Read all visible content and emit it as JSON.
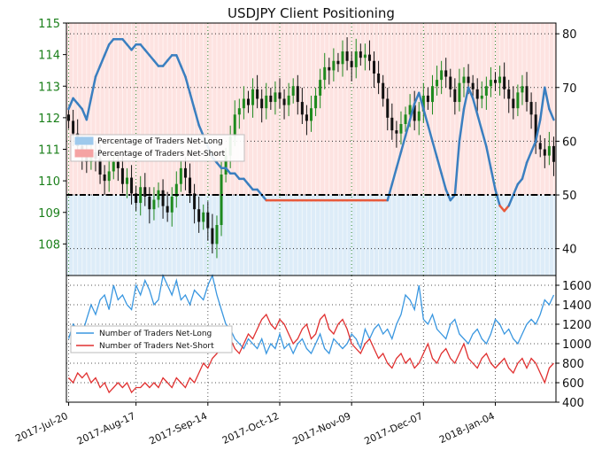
{
  "chart_data": [
    {
      "type": "candlestick-with-line",
      "title": "USDJPY Client Positioning",
      "left_axis": {
        "ylim": [
          107,
          115
        ],
        "ticks": [
          108,
          109,
          110,
          111,
          112,
          113,
          114,
          115
        ],
        "tick_color": "#1a7f1a"
      },
      "right_axis": {
        "ylim": [
          35,
          82
        ],
        "ticks": [
          40,
          50,
          60,
          70,
          80
        ]
      },
      "reference_line": 50,
      "grid": true,
      "legend": {
        "placement": "left",
        "entries": [
          {
            "label": "Percentage of Traders Net-Long",
            "color": "#9ec9ec"
          },
          {
            "label": "Percentage of Traders Net-Short",
            "color": "#f5a3a3"
          }
        ]
      },
      "price_close": [
        111.9,
        111.5,
        111.1,
        110.8,
        110.6,
        110.9,
        110.7,
        110.2,
        110.0,
        110.3,
        110.6,
        110.4,
        109.9,
        110.1,
        109.6,
        109.3,
        109.8,
        109.5,
        109.1,
        109.4,
        109.7,
        109.2,
        109.0,
        109.5,
        109.9,
        110.4,
        110.1,
        109.6,
        109.1,
        108.7,
        109.0,
        108.5,
        108.0,
        108.6,
        110.2,
        110.8,
        111.4,
        112.1,
        112.3,
        112.6,
        112.4,
        112.9,
        112.6,
        112.3,
        112.7,
        112.5,
        112.8,
        112.6,
        112.4,
        112.7,
        113.0,
        112.5,
        112.1,
        111.9,
        112.3,
        112.7,
        113.2,
        113.6,
        113.5,
        113.8,
        113.7,
        114.1,
        113.8,
        113.6,
        114.1,
        113.9,
        114.0,
        113.8,
        113.4,
        113.1,
        112.6,
        112.0,
        111.6,
        111.5,
        111.8,
        112.1,
        112.4,
        111.9,
        112.2,
        112.7,
        112.5,
        113.0,
        113.2,
        113.5,
        113.3,
        112.9,
        112.5,
        113.1,
        113.3,
        113.1,
        112.9,
        112.6,
        112.7,
        113.0,
        113.2,
        113.1,
        113.3,
        112.9,
        112.6,
        112.3,
        112.8,
        113.0,
        112.5,
        112.1,
        111.2,
        111.0,
        110.8,
        111.1,
        110.6
      ],
      "net_long_pct": [
        66,
        68,
        67,
        66,
        64,
        68,
        72,
        74,
        76,
        78,
        79,
        79,
        79,
        78,
        77,
        78,
        78,
        77,
        76,
        75,
        74,
        74,
        75,
        76,
        76,
        74,
        72,
        69,
        66,
        63,
        61,
        59,
        57,
        56,
        55,
        55,
        54,
        54,
        53,
        53,
        52,
        51,
        51,
        50,
        49,
        49,
        49,
        49,
        49,
        49,
        49,
        49,
        49,
        49,
        49,
        49,
        49,
        49,
        49,
        49,
        49,
        49,
        49,
        49,
        49,
        49,
        49,
        49,
        49,
        49,
        49,
        49,
        52,
        55,
        58,
        61,
        64,
        67,
        69,
        66,
        63,
        60,
        57,
        54,
        51,
        49,
        50,
        60,
        66,
        70,
        68,
        65,
        62,
        59,
        55,
        51,
        48,
        47,
        48,
        50,
        52,
        53,
        56,
        58,
        60,
        64,
        70,
        66,
        64
      ],
      "net_short_pct": [
        34,
        32,
        33,
        34,
        36,
        32,
        28,
        26,
        24,
        22,
        21,
        21,
        21,
        22,
        23,
        22,
        22,
        23,
        24,
        25,
        26,
        26,
        25,
        24,
        24,
        26,
        28,
        31,
        34,
        37,
        39,
        41,
        43,
        44,
        45,
        45,
        46,
        46,
        47,
        47,
        48,
        49,
        49,
        52,
        57,
        60,
        58,
        55,
        53,
        51,
        49,
        47,
        50,
        52,
        48,
        45,
        43,
        47,
        52,
        56,
        55,
        51,
        49,
        50,
        53,
        56,
        54,
        52,
        50,
        46,
        44,
        42,
        48,
        45,
        42,
        39,
        36,
        33,
        31,
        34,
        37,
        40,
        43,
        46,
        49,
        51,
        50,
        40,
        34,
        30,
        32,
        35,
        38,
        41,
        45,
        49,
        52,
        53,
        52,
        50,
        48,
        47,
        44,
        42,
        40,
        36,
        30,
        34,
        36
      ]
    },
    {
      "type": "line",
      "right_axis": {
        "ylim": [
          400,
          1700
        ],
        "ticks": [
          400,
          600,
          800,
          1000,
          1200,
          1400,
          1600
        ]
      },
      "legend": {
        "placement": "left",
        "entries": [
          {
            "label": "Number of Traders Net-Long",
            "color": "#3a97e0"
          },
          {
            "label": "Number of Traders Net-Short",
            "color": "#e03030"
          }
        ]
      },
      "series": [
        {
          "name": "Number of Traders Net-Long",
          "color": "#3a97e0",
          "values": [
            1050,
            1200,
            1150,
            1100,
            1250,
            1400,
            1300,
            1450,
            1500,
            1350,
            1600,
            1450,
            1500,
            1400,
            1350,
            1600,
            1500,
            1650,
            1550,
            1400,
            1450,
            1700,
            1600,
            1500,
            1650,
            1450,
            1500,
            1400,
            1550,
            1500,
            1450,
            1600,
            1700,
            1500,
            1350,
            1200,
            1150,
            1050,
            1000,
            950,
            1050,
            1000,
            950,
            1050,
            900,
            1000,
            950,
            1100,
            950,
            1000,
            900,
            1000,
            1050,
            950,
            900,
            1000,
            1100,
            950,
            900,
            1050,
            1000,
            950,
            1000,
            1100,
            1050,
            950,
            1150,
            1050,
            1150,
            1200,
            1100,
            1150,
            1050,
            1200,
            1300,
            1500,
            1450,
            1350,
            1600,
            1250,
            1200,
            1300,
            1150,
            1100,
            1050,
            1200,
            1250,
            1100,
            1050,
            1000,
            1100,
            1150,
            1050,
            1000,
            1100,
            1250,
            1200,
            1100,
            1150,
            1050,
            1000,
            1100,
            1200,
            1250,
            1200,
            1300,
            1450,
            1400,
            1500
          ]
        },
        {
          "name": "Number of Traders Net-Short",
          "color": "#e03030",
          "values": [
            650,
            600,
            700,
            650,
            700,
            600,
            650,
            550,
            600,
            500,
            550,
            600,
            550,
            600,
            500,
            550,
            550,
            600,
            550,
            600,
            550,
            650,
            600,
            550,
            650,
            600,
            550,
            650,
            600,
            700,
            800,
            750,
            850,
            900,
            950,
            1000,
            1050,
            950,
            900,
            1000,
            1100,
            1050,
            1150,
            1250,
            1300,
            1200,
            1150,
            1250,
            1200,
            1100,
            1000,
            1050,
            1150,
            1200,
            1050,
            1100,
            1250,
            1300,
            1150,
            1100,
            1200,
            1250,
            1150,
            1000,
            950,
            900,
            1000,
            1050,
            950,
            850,
            900,
            800,
            750,
            850,
            900,
            800,
            850,
            750,
            800,
            900,
            1000,
            850,
            800,
            900,
            950,
            850,
            800,
            900,
            1000,
            850,
            800,
            750,
            850,
            900,
            800,
            750,
            800,
            850,
            750,
            700,
            800,
            850,
            750,
            850,
            800,
            700,
            600,
            750,
            800
          ]
        }
      ]
    }
  ],
  "x_tick_labels": [
    "2017-Jul-20",
    "2017-Aug-17",
    "2017-Sep-14",
    "2017-Oct-12",
    "2017-Nov-09",
    "2017-Dec-07",
    "2018-Jan-04"
  ],
  "colors": {
    "net_long_fill": "#ddecf8",
    "net_short_fill": "#fde3e1",
    "candle_up": "#1e8a1e",
    "candle_down": "#111111",
    "long_line": "#3a7fc0",
    "short_line": "#e85a3c"
  }
}
